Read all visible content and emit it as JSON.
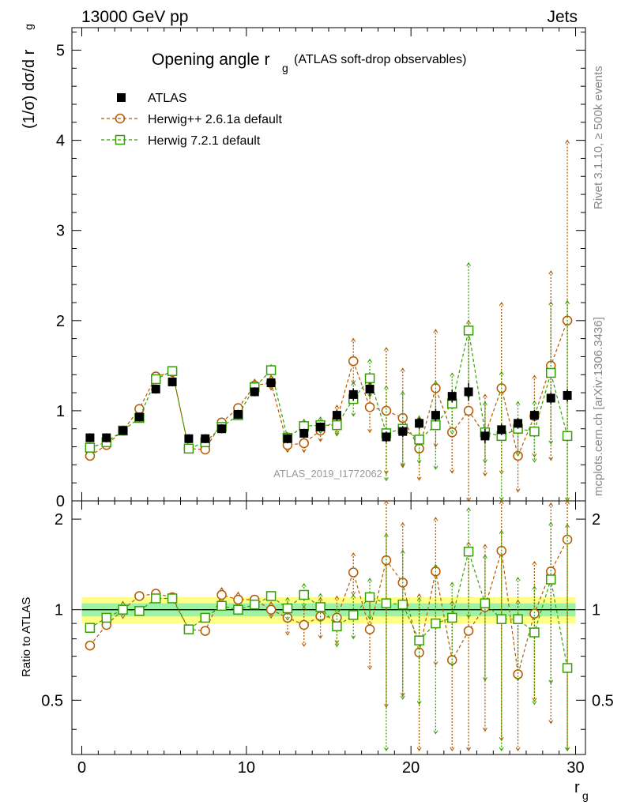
{
  "header": {
    "left": "13000 GeV pp",
    "right": "Jets"
  },
  "side_labels": {
    "rivet": "Rivet 3.1.10, ≥ 500k events",
    "mcplots": "mcplots.cern.ch [arXiv:1306.3436]"
  },
  "chart_data": {
    "type": "scatter",
    "title": "Opening angle r",
    "title_sub": "g",
    "title_suffix": "(ATLAS soft-drop observables)",
    "ylabel_main": "(1/σ) dσ/d r",
    "ylabel_main_sub": "g",
    "ylabel_ratio": "Ratio to ATLAS",
    "xlabel": "r",
    "xlabel_sub": "g",
    "watermark": "ATLAS_2019_I1772062",
    "xlim": [
      -0.6,
      30.6
    ],
    "ylim_main": [
      0,
      5.25
    ],
    "ylim_ratio": [
      0.33,
      2.3
    ],
    "x_ticks": [
      "0",
      "10",
      "20",
      "30"
    ],
    "y_ticks_main": [
      "0",
      "1",
      "2",
      "3",
      "4",
      "5"
    ],
    "y_ticks_ratio": [
      "0.5",
      "1",
      "2"
    ],
    "x": [
      0.5,
      1.5,
      2.5,
      3.5,
      4.5,
      5.5,
      6.5,
      7.5,
      8.5,
      9.5,
      10.5,
      11.5,
      12.5,
      13.5,
      14.5,
      15.5,
      16.5,
      17.5,
      18.5,
      19.5,
      20.5,
      21.5,
      22.5,
      23.5,
      24.5,
      25.5,
      26.5,
      27.5,
      28.5,
      29.5
    ],
    "legend": [
      "ATLAS",
      "Herwig++ 2.6.1a default",
      "Herwig 7.2.1 default"
    ],
    "series": [
      {
        "name": "ATLAS",
        "color": "#000000",
        "marker": "filled-square",
        "values": [
          0.7,
          0.7,
          0.78,
          0.93,
          1.24,
          1.32,
          0.69,
          0.69,
          0.8,
          0.96,
          1.21,
          1.31,
          0.69,
          0.75,
          0.82,
          0.95,
          1.18,
          1.24,
          0.71,
          0.77,
          0.86,
          0.95,
          1.16,
          1.21,
          0.72,
          0.79,
          0.86,
          0.95,
          1.14,
          1.17
        ],
        "errors": [
          0.05,
          0.05,
          0.05,
          0.05,
          0.05,
          0.05,
          0.05,
          0.05,
          0.05,
          0.05,
          0.05,
          0.05,
          0.05,
          0.05,
          0.05,
          0.06,
          0.07,
          0.07,
          0.06,
          0.06,
          0.06,
          0.07,
          0.07,
          0.1,
          0.08,
          0.06,
          0.06,
          0.06,
          0.06,
          0.07
        ]
      },
      {
        "name": "Herwig++ 2.6.1a default",
        "color": "#b35900",
        "marker": "open-circle",
        "values": [
          0.5,
          0.62,
          0.78,
          1.02,
          1.38,
          1.43,
          0.58,
          0.57,
          0.87,
          1.03,
          1.28,
          1.31,
          0.62,
          0.64,
          0.78,
          0.9,
          1.55,
          1.04,
          1.0,
          0.92,
          0.58,
          1.25,
          0.76,
          1.0,
          0.73,
          1.25,
          0.5,
          0.94,
          1.5,
          2.0
        ],
        "errors": [
          0.04,
          0.04,
          0.05,
          0.05,
          0.06,
          0.06,
          0.04,
          0.04,
          0.05,
          0.06,
          0.07,
          0.08,
          0.08,
          0.1,
          0.12,
          0.16,
          0.25,
          0.28,
          0.7,
          0.55,
          0.35,
          0.65,
          0.45,
          1.0,
          0.45,
          0.95,
          0.4,
          0.45,
          1.05,
          2.0
        ]
      },
      {
        "name": "Herwig 7.2.1 default",
        "color": "#33a000",
        "marker": "open-square",
        "values": [
          0.59,
          0.65,
          0.78,
          0.92,
          1.35,
          1.44,
          0.58,
          0.65,
          0.82,
          0.95,
          1.26,
          1.45,
          0.7,
          0.83,
          0.84,
          0.84,
          1.13,
          1.36,
          0.75,
          0.8,
          0.68,
          0.84,
          1.08,
          1.89,
          0.76,
          0.72,
          0.8,
          0.77,
          1.42,
          0.72
        ]
      }
    ],
    "ratio": {
      "reference": 1,
      "band_inner_halfwidth": 0.05,
      "band_outer_halfwidth": 0.1,
      "herwig_pp": [
        0.76,
        0.89,
        1.0,
        1.11,
        1.13,
        1.1,
        0.86,
        0.85,
        1.12,
        1.08,
        1.08,
        1.0,
        0.94,
        0.89,
        0.95,
        0.94,
        1.33,
        0.86,
        1.46,
        1.23,
        0.72,
        1.34,
        0.68,
        0.85,
        1.02,
        1.57,
        0.61,
        0.97,
        1.34,
        1.71
      ],
      "herwig7": [
        0.87,
        0.94,
        1.0,
        0.99,
        1.09,
        1.09,
        0.86,
        0.94,
        1.03,
        1.0,
        1.04,
        1.11,
        1.01,
        1.12,
        1.02,
        0.88,
        0.96,
        1.1,
        1.05,
        1.04,
        0.79,
        0.9,
        0.94,
        1.56,
        1.05,
        0.93,
        0.93,
        0.84,
        1.26,
        0.64
      ]
    }
  }
}
